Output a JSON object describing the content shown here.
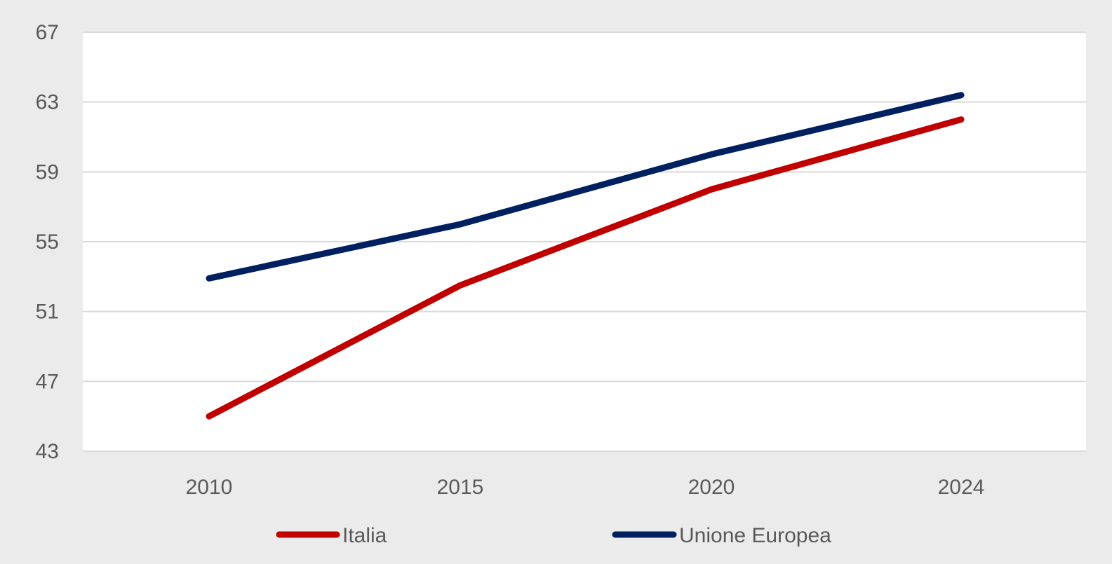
{
  "chart_data": {
    "type": "line",
    "categories": [
      "2010",
      "2015",
      "2020",
      "2024"
    ],
    "x": [
      2010,
      2015,
      2020,
      2024
    ],
    "series": [
      {
        "name": "Italia",
        "values": [
          45.0,
          52.5,
          58.0,
          62.0
        ],
        "color": "#c00000"
      },
      {
        "name": "Unione Europea",
        "values": [
          52.9,
          56.0,
          60.0,
          63.4
        ],
        "color": "#002060"
      }
    ],
    "yticks": [
      43,
      47,
      51,
      55,
      59,
      63,
      67
    ],
    "ylim": [
      43,
      67
    ],
    "grid": true,
    "legend_position": "bottom",
    "title": "",
    "xlabel": "",
    "ylabel": ""
  },
  "colors": {
    "background_outer": "#ebebeb",
    "plot_background": "#ffffff",
    "gridline": "#d9d9d9",
    "text": "#595959"
  }
}
